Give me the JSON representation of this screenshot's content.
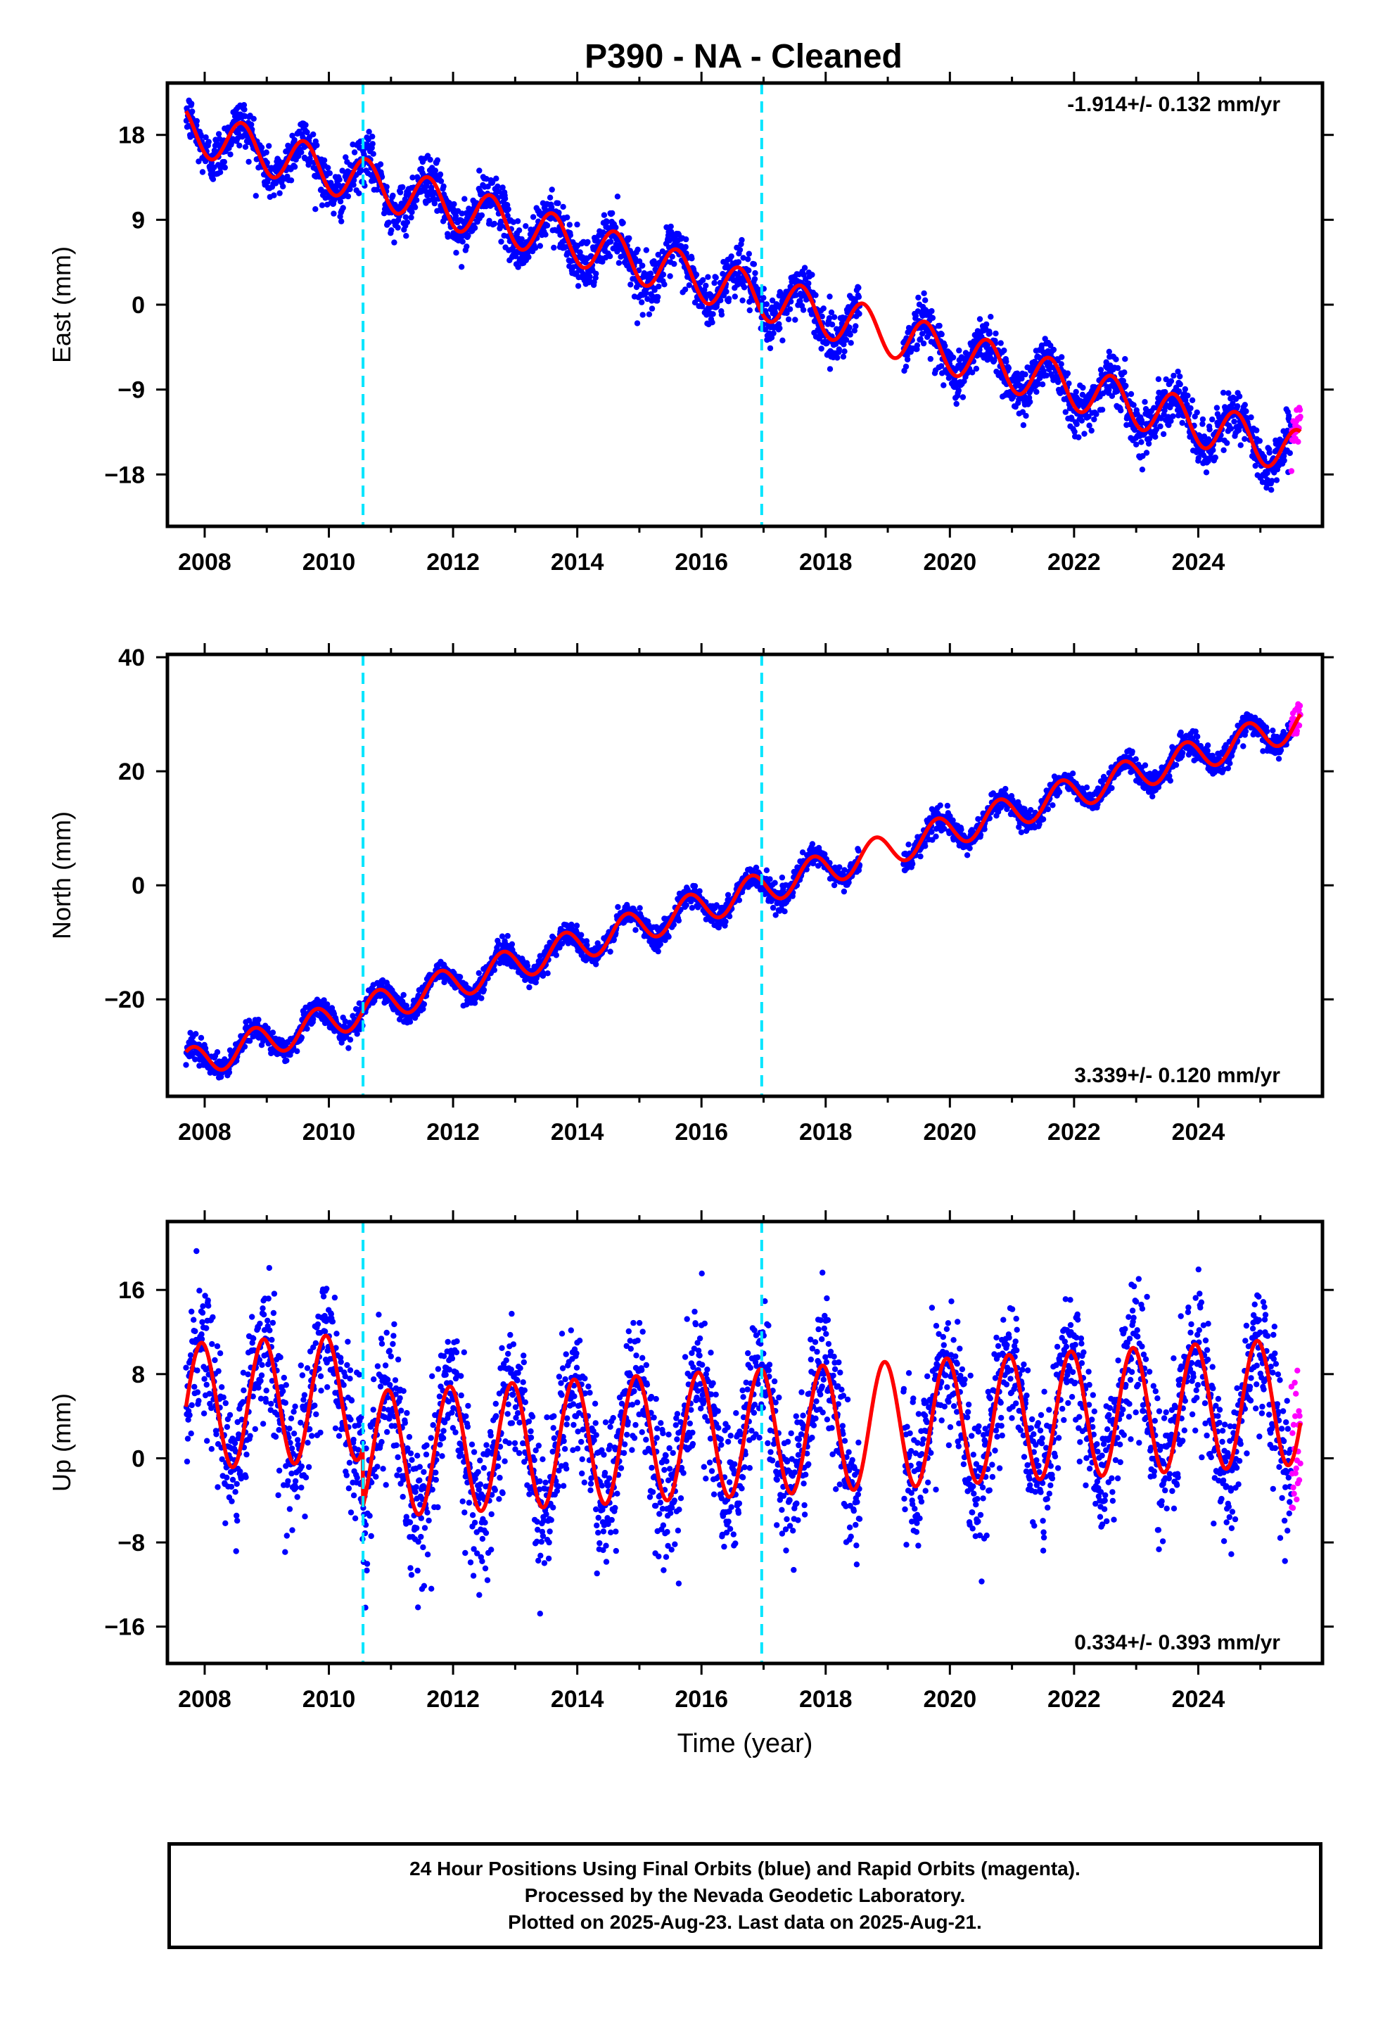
{
  "title": "P390  - NA - Cleaned",
  "footer": {
    "line1": "24 Hour Positions Using Final Orbits (blue) and Rapid Orbits (magenta).",
    "line2": "Processed by the Nevada Geodetic Laboratory.",
    "line3": "Plotted on 2025-Aug-23. Last data on 2025-Aug-21."
  },
  "colors": {
    "final_orbits": "#0000ff",
    "rapid_orbits": "#ff00ff",
    "model_fit": "#ff0000",
    "equipment_change": "#00e5ff"
  },
  "chart_data": [
    {
      "type": "scatter",
      "component": "east",
      "ylabel": "East (mm)",
      "xlabel": "",
      "xlim": [
        2007.4,
        2026.0
      ],
      "ylim": [
        -23.5,
        23.5
      ],
      "xticks": [
        2008,
        2010,
        2012,
        2014,
        2016,
        2018,
        2020,
        2022,
        2024
      ],
      "yticks": [
        18,
        9,
        0,
        -9,
        -18
      ],
      "ytick_labels": [
        "18",
        "9",
        "0",
        "−9",
        "−18"
      ],
      "grid": false,
      "annotation": "-1.914+/- 0.132 mm/yr",
      "annotation_position": "top-right",
      "vertical_lines": [
        2010.55,
        2016.97
      ],
      "model": {
        "rate_mm_yr": -1.914,
        "intercept_2008": 18.0,
        "annual_amplitude": 2.4,
        "annual_phase": 0.35
      },
      "data_gap": [
        2018.55,
        2019.25
      ],
      "scatter_sigma": 1.3,
      "series": [
        {
          "name": "Final Orbits",
          "x_range": [
            2007.7,
            2025.5
          ],
          "style": "points"
        },
        {
          "name": "Rapid Orbits",
          "x_range": [
            2025.5,
            2025.65
          ],
          "style": "points"
        },
        {
          "name": "Model",
          "style": "line"
        }
      ]
    },
    {
      "type": "scatter",
      "component": "north",
      "ylabel": "North (mm)",
      "xlabel": "",
      "xlim": [
        2007.4,
        2026.0
      ],
      "ylim": [
        -37,
        40.5
      ],
      "xticks": [
        2008,
        2010,
        2012,
        2014,
        2016,
        2018,
        2020,
        2022,
        2024
      ],
      "yticks": [
        40,
        20,
        0,
        -20
      ],
      "ytick_labels": [
        "40",
        "20",
        "0",
        "−20"
      ],
      "grid": false,
      "annotation": "3.339+/- 0.120 mm/yr",
      "annotation_position": "bottom-right",
      "vertical_lines": [
        2010.55,
        2016.97
      ],
      "model": {
        "rate_mm_yr": 3.339,
        "intercept_2008": -30.5,
        "annual_amplitude": 2.8,
        "annual_phase": 0.55
      },
      "data_gap": [
        2018.55,
        2019.25
      ],
      "scatter_sigma": 1.0,
      "series": [
        {
          "name": "Final Orbits",
          "x_range": [
            2007.7,
            2025.5
          ],
          "style": "points"
        },
        {
          "name": "Rapid Orbits",
          "x_range": [
            2025.5,
            2025.65
          ],
          "style": "points"
        },
        {
          "name": "Model",
          "style": "line"
        }
      ]
    },
    {
      "type": "scatter",
      "component": "up",
      "ylabel": "Up (mm)",
      "xlabel": "Time (year)",
      "xlim": [
        2007.4,
        2026.0
      ],
      "ylim": [
        -19.5,
        22.5
      ],
      "xticks": [
        2008,
        2010,
        2012,
        2014,
        2016,
        2018,
        2020,
        2022,
        2024
      ],
      "yticks": [
        16,
        8,
        0,
        -8,
        -16
      ],
      "ytick_labels": [
        "16",
        "8",
        "0",
        "−8",
        "−16"
      ],
      "grid": false,
      "annotation": "0.334+/- 0.393 mm/yr",
      "annotation_position": "bottom-right",
      "vertical_lines": [
        2010.55,
        2016.97
      ],
      "model": {
        "rate_mm_yr": 0.334,
        "intercept_2008": 5.0,
        "annual_amplitude": 6.0,
        "annual_phase": 0.7,
        "offset_at_2010_55": -5.5
      },
      "data_gap": [
        2018.55,
        2019.25
      ],
      "scatter_sigma": 3.2,
      "series": [
        {
          "name": "Final Orbits",
          "x_range": [
            2007.7,
            2025.5
          ],
          "style": "points"
        },
        {
          "name": "Rapid Orbits",
          "x_range": [
            2025.5,
            2025.65
          ],
          "style": "points"
        },
        {
          "name": "Model",
          "style": "line"
        }
      ]
    }
  ]
}
